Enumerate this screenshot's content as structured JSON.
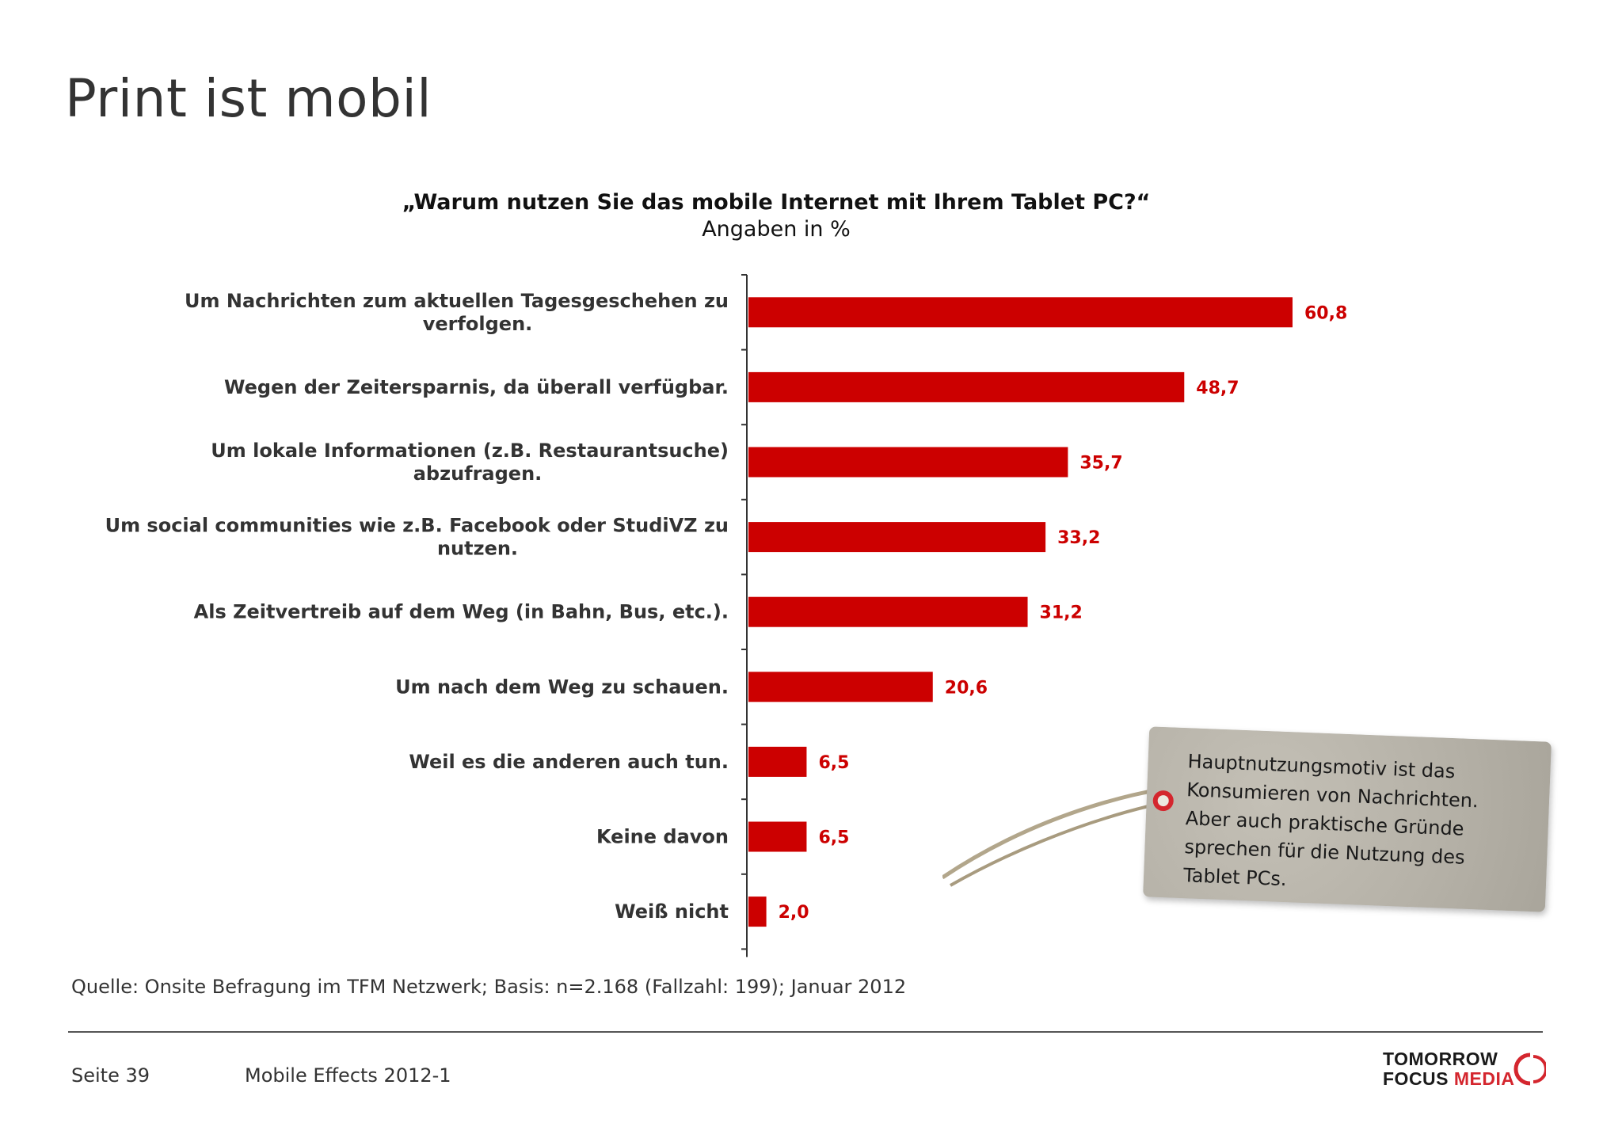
{
  "page": {
    "title": "Print ist mobil"
  },
  "chart_data": {
    "type": "bar",
    "orientation": "horizontal",
    "title": "„Warum nutzen Sie das mobile Internet mit Ihrem Tablet PC?“",
    "subtitle": "Angaben in %",
    "categories": [
      "Um Nachrichten zum aktuellen Tagesgeschehen zu verfolgen.",
      "Wegen der Zeitersparnis, da überall verfügbar.",
      "Um lokale Informationen (z.B. Restaurantsuche) abzufragen.",
      "Um social communities wie z.B. Facebook oder StudiVZ zu nutzen.",
      "Als Zeitvertreib auf dem Weg (in Bahn, Bus, etc.).",
      "Um nach dem Weg zu schauen.",
      "Weil es die anderen auch tun.",
      "Keine davon",
      "Weiß nicht"
    ],
    "category_lines": [
      [
        "Um Nachrichten zum aktuellen Tagesgeschehen zu",
        "verfolgen."
      ],
      [
        "Wegen der Zeitersparnis, da überall verfügbar."
      ],
      [
        "Um lokale Informationen (z.B. Restaurantsuche)",
        "abzufragen."
      ],
      [
        "Um social communities wie z.B. Facebook oder StudiVZ zu",
        "nutzen."
      ],
      [
        "Als Zeitvertreib auf dem Weg (in Bahn, Bus, etc.)."
      ],
      [
        "Um nach dem Weg zu schauen."
      ],
      [
        "Weil es die anderen auch tun."
      ],
      [
        "Keine davon"
      ],
      [
        "Weiß nicht"
      ]
    ],
    "values": [
      60.8,
      48.7,
      35.7,
      33.2,
      31.2,
      20.6,
      6.5,
      6.5,
      2.0
    ],
    "value_labels": [
      "60,8",
      "48,7",
      "35,7",
      "33,2",
      "31,2",
      "20,6",
      "6,5",
      "6,5",
      "2,0"
    ],
    "xlim": [
      0,
      100
    ],
    "grid": false,
    "legend": "none",
    "bar_color": "#cc0000",
    "label_color": "#cc0000"
  },
  "callout": {
    "text_lines": [
      "Hauptnutzungsmotiv ist das",
      "Konsumieren von Nachrichten.",
      "Aber auch praktische Gründe",
      "sprechen für die Nutzung des",
      "Tablet PCs."
    ]
  },
  "footer": {
    "source": "Quelle: Onsite Befragung im TFM Netzwerk; Basis: n=2.168 (Fallzahl: 199); Januar 2012",
    "page_number": "Seite 39",
    "document_name": "Mobile Effects 2012-1"
  },
  "logo": {
    "line1": "TOMORROW",
    "line2a": "FOCUS ",
    "line2b": "MEDIA",
    "accent_color": "#d4262e"
  }
}
